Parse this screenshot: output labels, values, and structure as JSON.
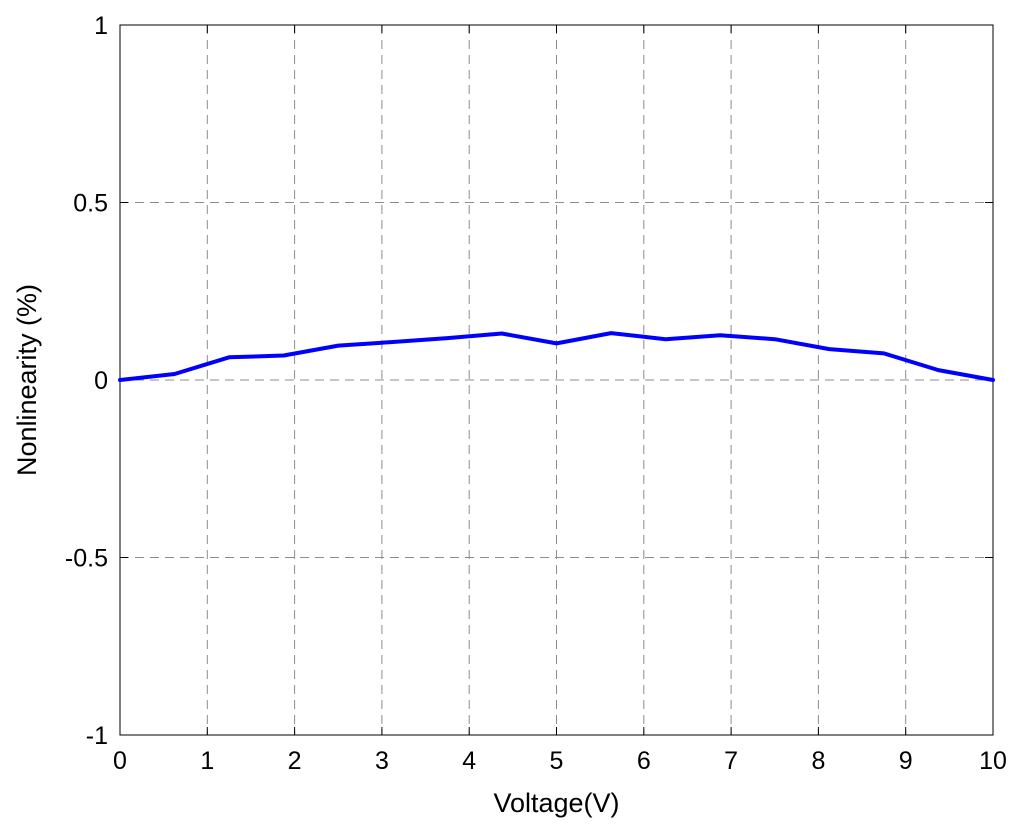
{
  "chart_data": {
    "type": "line",
    "title": "",
    "xlabel": "Voltage(V)",
    "ylabel": "Nonlinearity (%)",
    "xlim": [
      0,
      10
    ],
    "ylim": [
      -1,
      1
    ],
    "xticks": [
      0,
      1,
      2,
      3,
      4,
      5,
      6,
      7,
      8,
      9,
      10
    ],
    "xtick_labels": [
      "0",
      "1",
      "2",
      "3",
      "4",
      "5",
      "6",
      "7",
      "8",
      "9",
      "10"
    ],
    "yticks": [
      -1,
      -0.5,
      0,
      0.5,
      1
    ],
    "ytick_labels": [
      "-1",
      "-0.5",
      "0",
      "0.5",
      "1"
    ],
    "grid": true,
    "grid_style": "dashed",
    "series": [
      {
        "color": "#0000ff",
        "x": [
          0,
          0.625,
          1.25,
          1.875,
          2.5,
          3.125,
          3.75,
          4.375,
          5.0,
          5.625,
          6.25,
          6.875,
          7.5,
          8.125,
          8.75,
          9.375,
          10
        ],
        "y": [
          0,
          0.017,
          0.064,
          0.069,
          0.097,
          0.107,
          0.118,
          0.131,
          0.103,
          0.132,
          0.115,
          0.126,
          0.115,
          0.087,
          0.075,
          0.028,
          0
        ]
      }
    ]
  }
}
